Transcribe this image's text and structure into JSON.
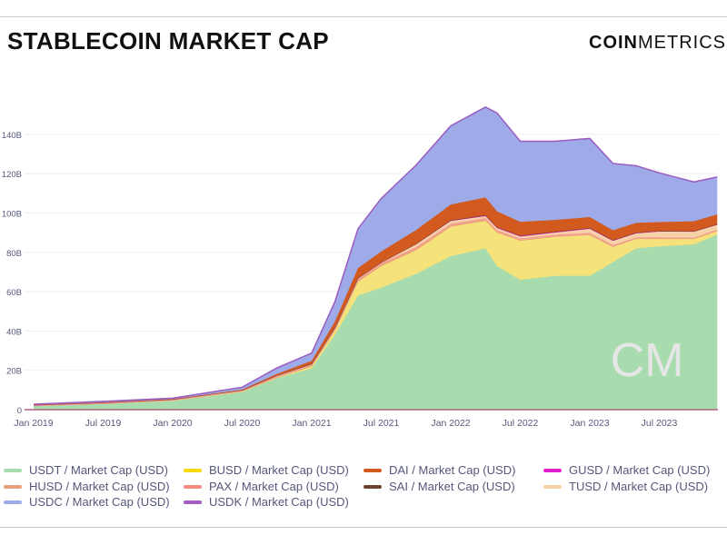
{
  "chart_data": {
    "type": "area",
    "stacked": true,
    "title": "STABLECOIN MARKET CAP",
    "xlabel": "",
    "ylabel": "",
    "ylim": [
      0,
      150000000000
    ],
    "yticks": [
      "0",
      "20B",
      "40B",
      "60B",
      "80B",
      "100B",
      "120B",
      "140B"
    ],
    "xticks": [
      "Jan 2019",
      "Jul 2019",
      "Jan 2020",
      "Jul 2020",
      "Jan 2021",
      "Jul 2021",
      "Jan 2022",
      "Jul 2022",
      "Jan 2023",
      "Jul 2023"
    ],
    "grid": true,
    "legend_position": "bottom",
    "x": [
      "2019-01",
      "2019-07",
      "2020-01",
      "2020-07",
      "2020-10",
      "2021-01",
      "2021-03",
      "2021-05",
      "2021-07",
      "2021-10",
      "2022-01",
      "2022-04",
      "2022-05",
      "2022-07",
      "2022-10",
      "2023-01",
      "2023-03",
      "2023-05",
      "2023-07",
      "2023-10",
      "2023-12"
    ],
    "unit": "B USD",
    "series": [
      {
        "name": "USDT / Market Cap (USD)",
        "color": "#a8dcae",
        "values": [
          2,
          3,
          4.5,
          9,
          16,
          21,
          38,
          58,
          62,
          69,
          78,
          82,
          73,
          66,
          68,
          68,
          75,
          82,
          83,
          84,
          89
        ]
      },
      {
        "name": "BUSD / Market Cap (USD)",
        "color": "#f6e27a",
        "values": [
          0,
          0.1,
          0.2,
          0.2,
          0.2,
          1,
          2,
          7,
          11,
          12,
          15,
          14,
          17,
          20,
          20,
          21,
          8,
          5,
          4,
          3,
          2
        ]
      },
      {
        "name": "HUSD / Market Cap (USD)",
        "color": "#e8a07a",
        "values": [
          0,
          0,
          0.1,
          0.2,
          0.3,
          0.3,
          0.5,
          0.6,
          0.6,
          0.6,
          0.5,
          0.5,
          0.4,
          0.1,
          0.1,
          0,
          0,
          0,
          0,
          0,
          0
        ]
      },
      {
        "name": "PAX / Market Cap (USD)",
        "color": "#f4a08f",
        "values": [
          0.1,
          0.2,
          0.2,
          0.3,
          0.5,
          0.6,
          0.8,
          0.9,
          0.9,
          1,
          1,
          0.9,
          0.9,
          0.9,
          0.9,
          0.9,
          0.8,
          0.6,
          0.6,
          0.5,
          0.5
        ]
      },
      {
        "name": "TUSD / Market Cap (USD)",
        "color": "#f7d1a8",
        "values": [
          0.2,
          0.2,
          0.2,
          0.3,
          0.4,
          0.4,
          0.5,
          0.5,
          0.3,
          1.5,
          1.4,
          1,
          1,
          1,
          1,
          2,
          2,
          2,
          3,
          3,
          2.5
        ]
      },
      {
        "name": "GUSD / Market Cap (USD)",
        "color": "#e020d0",
        "values": [
          0,
          0,
          0,
          0,
          0,
          0,
          0,
          0,
          0.1,
          0.2,
          0.4,
          0.5,
          0.5,
          0.5,
          0.5,
          0.5,
          0.4,
          0.4,
          0.3,
          0.3,
          0.3
        ]
      },
      {
        "name": "SAI / Market Cap (USD)",
        "color": "#6b4232",
        "values": [
          0.1,
          0.1,
          0.05,
          0,
          0,
          0,
          0,
          0,
          0,
          0,
          0,
          0,
          0,
          0,
          0,
          0,
          0,
          0,
          0,
          0,
          0
        ]
      },
      {
        "name": "DAI / Market Cap (USD)",
        "color": "#d35a1e",
        "values": [
          0.1,
          0.1,
          0.1,
          0.2,
          0.8,
          1.5,
          3,
          5,
          5.5,
          7,
          8,
          9,
          8,
          7,
          6,
          5.5,
          5,
          5,
          4.5,
          5,
          5
        ]
      },
      {
        "name": "USDC / Market Cap (USD)",
        "color": "#9eabe8",
        "values": [
          0.3,
          0.5,
          0.5,
          1.2,
          3,
          4,
          10,
          20,
          27,
          33,
          40,
          46,
          50,
          41,
          40,
          40,
          34,
          29,
          25,
          20,
          19
        ]
      },
      {
        "name": "USDK / Market Cap (USD)",
        "color": "#a45cc2",
        "values": [
          0,
          0,
          0,
          0,
          0,
          0,
          0,
          0,
          0,
          0,
          0,
          0,
          0,
          0,
          0,
          0,
          0,
          0,
          0,
          0,
          0
        ]
      }
    ]
  },
  "header": {
    "title": "STABLECOIN MARKET CAP",
    "logo_bold": "COIN",
    "logo_light": "METRICS"
  },
  "watermark": "CM",
  "legend": [
    {
      "label": "USDT / Market Cap (USD)",
      "color": "#a8dcae"
    },
    {
      "label": "BUSD / Market Cap (USD)",
      "color": "#f5d90a"
    },
    {
      "label": "DAI / Market Cap (USD)",
      "color": "#d35a1e"
    },
    {
      "label": "GUSD / Market Cap (USD)",
      "color": "#e020d0"
    },
    {
      "label": "HUSD / Market Cap (USD)",
      "color": "#e8a07a"
    },
    {
      "label": "PAX / Market Cap (USD)",
      "color": "#f08c7c"
    },
    {
      "label": "SAI / Market Cap (USD)",
      "color": "#6b4232"
    },
    {
      "label": "TUSD / Market Cap (USD)",
      "color": "#f7d1a8"
    },
    {
      "label": "USDC / Market Cap (USD)",
      "color": "#9eabe8"
    },
    {
      "label": "USDK / Market Cap (USD)",
      "color": "#a45cc2"
    }
  ]
}
